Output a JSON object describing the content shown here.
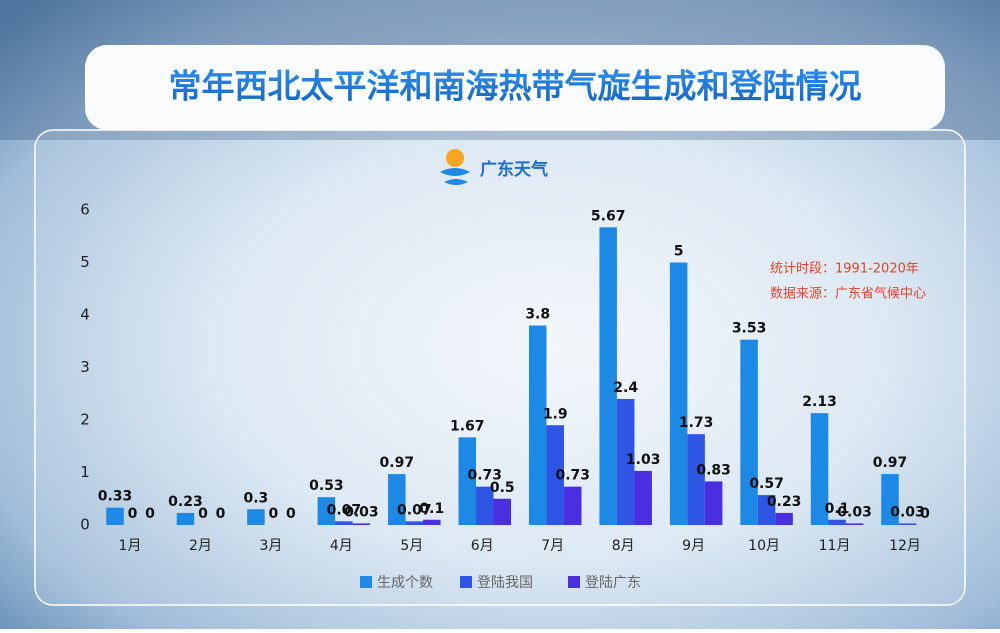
{
  "chart_data": {
    "type": "bar",
    "title": "常年西北太平洋和南海热带气旋生成和登陆情况",
    "logo_text": "广东天气",
    "notes": [
      "统计时段：1991-2020年",
      "数据来源：广东省气候中心"
    ],
    "categories": [
      "1月",
      "2月",
      "3月",
      "4月",
      "5月",
      "6月",
      "7月",
      "8月",
      "9月",
      "10月",
      "11月",
      "12月"
    ],
    "series": [
      {
        "name": "生成个数",
        "color": "#1e88e5",
        "values": [
          0.33,
          0.23,
          0.3,
          0.53,
          0.97,
          1.67,
          3.8,
          5.67,
          5,
          3.53,
          2.13,
          0.97
        ]
      },
      {
        "name": "登陆我国",
        "color": "#2f55e4",
        "values": [
          0,
          0,
          0,
          0.07,
          0.07,
          0.73,
          1.9,
          2.4,
          1.73,
          0.57,
          0.1,
          0.03
        ]
      },
      {
        "name": "登陆广东",
        "color": "#4a2fe0",
        "values": [
          0,
          0,
          0,
          0.03,
          0.1,
          0.5,
          0.73,
          1.03,
          0.83,
          0.23,
          0.03,
          0
        ]
      }
    ],
    "ylim": [
      0,
      6
    ],
    "yticks": [
      0,
      1,
      2,
      3,
      4,
      5,
      6
    ],
    "grid": false
  }
}
